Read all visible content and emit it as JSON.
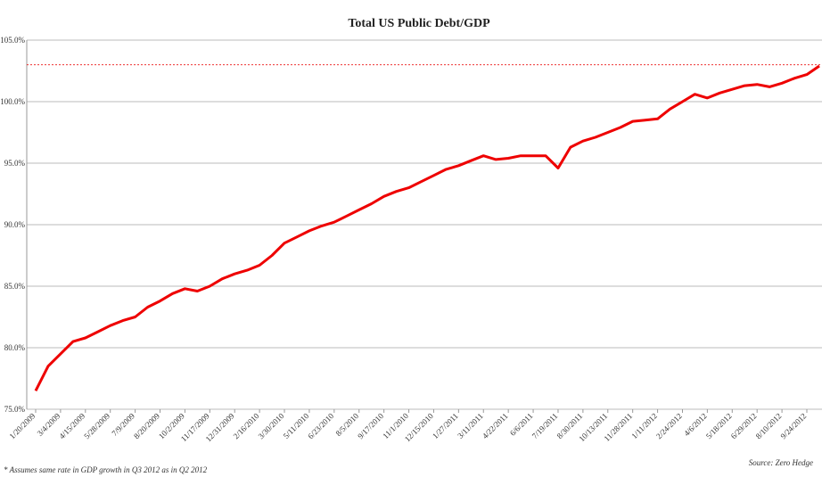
{
  "chart_data": {
    "type": "line",
    "title": "Total US Public Debt/GDP",
    "categories": [
      "1/20/2009",
      null,
      "3/4/2009",
      null,
      "4/15/2009",
      null,
      "5/28/2009",
      null,
      "7/9/2009",
      null,
      "8/20/2009",
      null,
      "10/2/2009",
      null,
      "11/17/2009",
      null,
      "12/31/2009",
      null,
      "2/16/2010",
      null,
      "3/30/2010",
      null,
      "5/11/2010",
      null,
      "6/23/2010",
      null,
      "8/5/2010",
      null,
      "9/17/2010",
      null,
      "11/1/2010",
      null,
      "12/15/2010",
      null,
      "1/27/2011",
      null,
      "3/11/2011",
      null,
      "4/22/2011",
      null,
      "6/6/2011",
      null,
      "7/19/2011",
      null,
      "8/30/2011",
      null,
      "10/13/2011",
      null,
      "11/28/2011",
      null,
      "1/11/2012",
      null,
      "2/24/2012",
      null,
      "4/6/2012",
      null,
      "5/18/2012",
      null,
      "6/29/2012",
      null,
      "8/10/2012",
      null,
      "9/24/2012",
      null
    ],
    "series": [
      {
        "name": "Total US Public Debt/GDP",
        "color": "#ee0000",
        "values": [
          76.5,
          78.5,
          79.5,
          80.5,
          80.8,
          81.3,
          81.8,
          82.2,
          82.5,
          83.3,
          83.8,
          84.4,
          84.8,
          84.6,
          85.0,
          85.6,
          86.0,
          86.3,
          86.7,
          87.5,
          88.5,
          89.0,
          89.5,
          89.9,
          90.2,
          90.7,
          91.2,
          91.7,
          92.3,
          92.7,
          93.0,
          93.5,
          94.0,
          94.5,
          94.8,
          95.2,
          95.6,
          95.3,
          95.4,
          95.6,
          95.6,
          95.6,
          94.6,
          96.3,
          96.8,
          97.1,
          97.5,
          97.9,
          98.4,
          98.5,
          98.6,
          99.4,
          100.0,
          100.6,
          100.3,
          100.7,
          101.0,
          101.3,
          101.4,
          101.2,
          101.5,
          101.9,
          102.2,
          102.9
        ]
      }
    ],
    "reference_line": {
      "value": 103,
      "color": "#ee3333"
    },
    "ylim": [
      75,
      105
    ],
    "yticks": [
      {
        "value": 75,
        "label": "75.0%"
      },
      {
        "value": 80,
        "label": "80.0%"
      },
      {
        "value": 85,
        "label": "85.0%"
      },
      {
        "value": 90,
        "label": "90.0%"
      },
      {
        "value": 95,
        "label": "95.0%"
      },
      {
        "value": 100,
        "label": "100.0%"
      },
      {
        "value": 105,
        "label": "105.0%"
      }
    ],
    "grid": true,
    "footnote": "* Assumes same rate in GDP growth in Q3 2012 as in Q2 2012",
    "source": "Source: Zero Hedge"
  }
}
